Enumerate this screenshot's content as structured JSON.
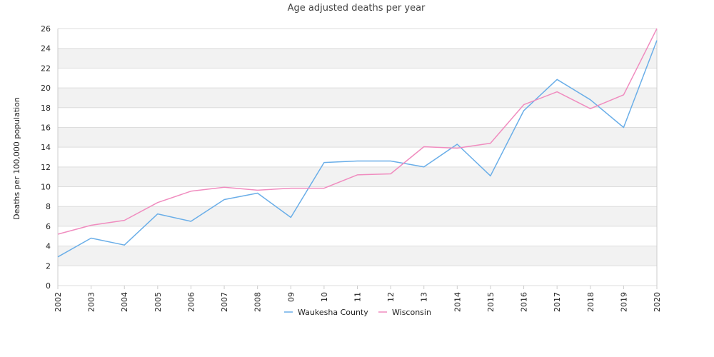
{
  "chart_data": {
    "type": "line",
    "title": "Age adjusted deaths per year",
    "xlabel": "",
    "ylabel": "Deaths per 100,000 population",
    "ylim": [
      0,
      26
    ],
    "yticks": [
      0,
      2,
      4,
      6,
      8,
      10,
      12,
      14,
      16,
      18,
      20,
      22,
      24,
      26
    ],
    "categories": [
      "2002",
      "2003",
      "2004",
      "2005",
      "2006",
      "2007",
      "2008",
      "09",
      "10",
      "11",
      "12",
      "13",
      "2014",
      "2015",
      "2016",
      "2017",
      "2018",
      "2019",
      "2020"
    ],
    "series": [
      {
        "name": "Waukesha County",
        "color": "#6aaee8",
        "values": [
          2.9,
          4.8,
          4.1,
          7.25,
          6.5,
          8.7,
          9.35,
          6.9,
          12.45,
          12.6,
          12.6,
          12.0,
          14.3,
          11.1,
          17.7,
          20.85,
          18.8,
          16.0,
          24.8
        ]
      },
      {
        "name": "Wisconsin",
        "color": "#f08cbf",
        "values": [
          5.2,
          6.1,
          6.6,
          8.4,
          9.55,
          9.95,
          9.65,
          9.85,
          9.85,
          11.2,
          11.3,
          14.05,
          13.9,
          14.4,
          18.3,
          19.6,
          17.9,
          19.3,
          26.0
        ]
      }
    ],
    "grid": true,
    "legend_position": "bottom-center"
  },
  "colors": {
    "band": "#f2f2f2",
    "gridline": "#dddddd",
    "axis": "#cccccc"
  }
}
